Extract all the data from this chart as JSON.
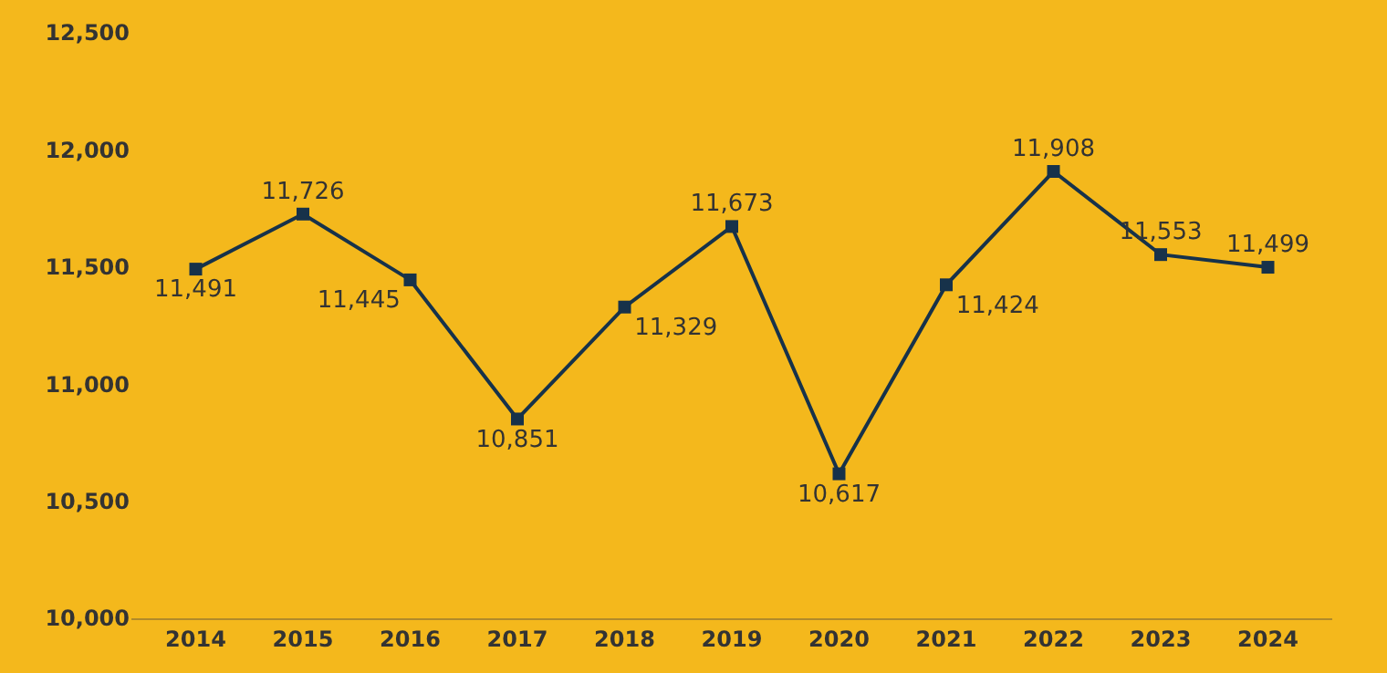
{
  "chart_data": {
    "type": "line",
    "categories": [
      "2014",
      "2015",
      "2016",
      "2017",
      "2018",
      "2019",
      "2020",
      "2021",
      "2022",
      "2023",
      "2024"
    ],
    "series": [
      {
        "color": "#17324a",
        "values": [
          11491,
          11726,
          11445,
          10851,
          11329,
          11673,
          10617,
          11424,
          11908,
          11553,
          11499
        ],
        "value_labels": [
          "11,491",
          "11,726",
          "11,445",
          "10,851",
          "11,329",
          "11,673",
          "10,617",
          "11,424",
          "11,908",
          "11,553",
          "11,499"
        ]
      }
    ],
    "ylim": [
      10000,
      12500
    ],
    "yticks": [
      {
        "value": 10000,
        "label": "10,000"
      },
      {
        "value": 10500,
        "label": "10,500"
      },
      {
        "value": 11000,
        "label": "11,000"
      },
      {
        "value": 11500,
        "label": "11,500"
      },
      {
        "value": 12000,
        "label": "12,000"
      },
      {
        "value": 12500,
        "label": "12,500"
      }
    ],
    "grid": false,
    "legend": false,
    "marker": "square",
    "line_style": "solid"
  }
}
